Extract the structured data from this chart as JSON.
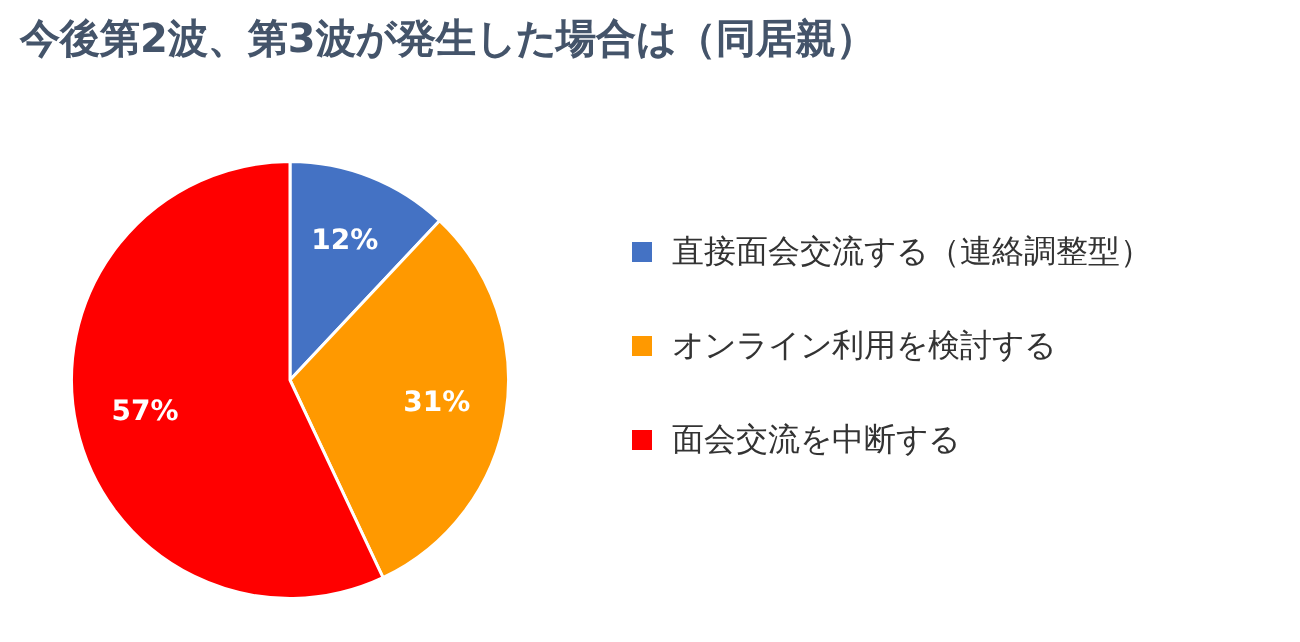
{
  "chart_data": {
    "type": "pie",
    "title": "今後第2波、第3波が発生した場合は（同居親）",
    "categories": [
      "直接面会交流する（連絡調整型）",
      "オンライン利用を検討する",
      "面会交流を中断する"
    ],
    "values": [
      12,
      31,
      57
    ],
    "colors": [
      "#4472c4",
      "#ff9900",
      "#ff0000"
    ],
    "value_labels": [
      "12%",
      "31%",
      "57%"
    ],
    "legend": "right"
  }
}
